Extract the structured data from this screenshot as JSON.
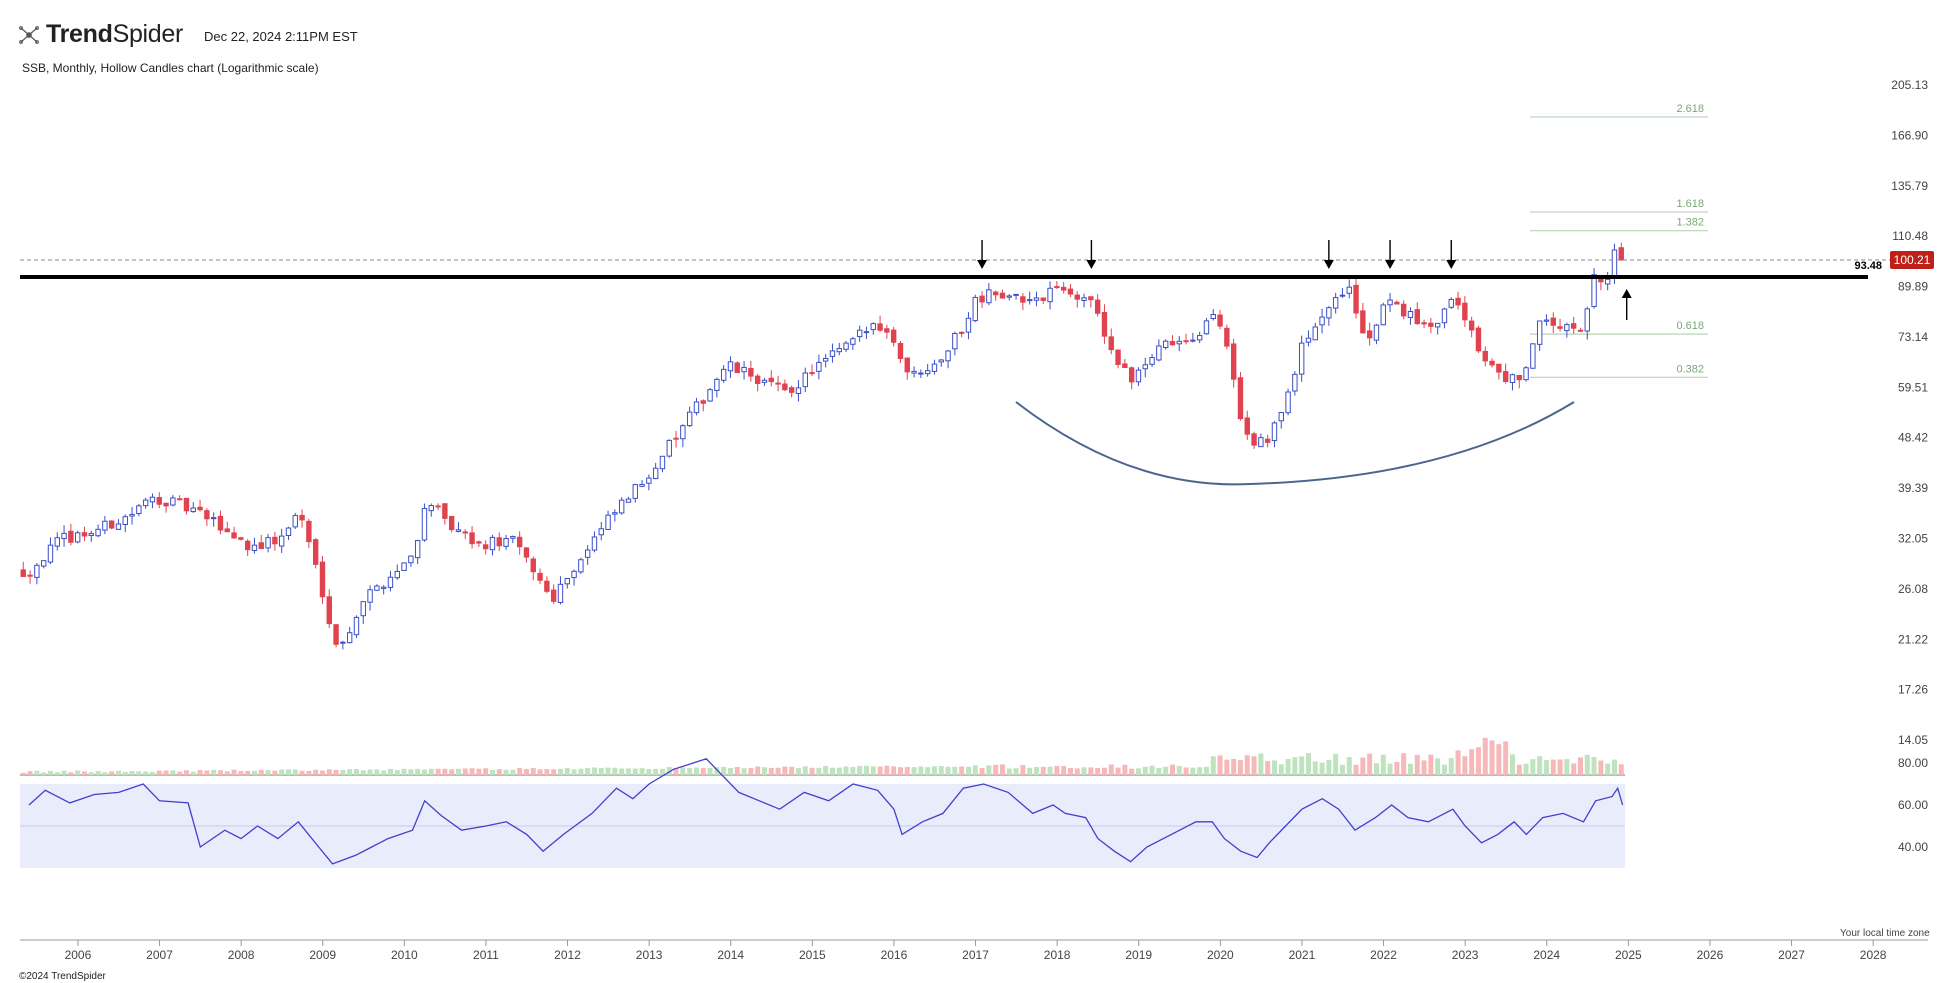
{
  "header": {
    "brand_bold": "Trend",
    "brand_light": "Spider",
    "timestamp": "Dec 22, 2024 2:11PM EST",
    "subtitle": "SSB, Monthly, Hollow Candles chart (Logarithmic scale)"
  },
  "footer": {
    "copyright": "©2024 TrendSpider",
    "timezone_note": "Your local time zone"
  },
  "colors": {
    "up": "#3a4fc9",
    "down": "#e0434f",
    "vol_up": "#bfe2bf",
    "vol_down": "#f6b8b8",
    "fib": "#7aa876",
    "cup": "#4a6690",
    "rsi": "#4040cc",
    "rsi_band": "#e8ecfb",
    "last_price_bg": "#c0201a"
  },
  "chart_data": {
    "type": "candlestick",
    "ticker": "SSB",
    "interval": "Monthly",
    "scale": "log",
    "price_axis_ticks": [
      "205.13",
      "166.90",
      "135.79",
      "110.48",
      "89.89",
      "73.14",
      "59.51",
      "48.42",
      "39.39",
      "32.05",
      "26.08",
      "21.22",
      "17.26",
      "14.05"
    ],
    "x_axis_ticks": [
      "2006",
      "2007",
      "2008",
      "2009",
      "2010",
      "2011",
      "2012",
      "2013",
      "2014",
      "2015",
      "2016",
      "2017",
      "2018",
      "2019",
      "2020",
      "2021",
      "2022",
      "2023",
      "2024",
      "2025",
      "2026",
      "2027",
      "2028"
    ],
    "last_price": "100.21",
    "resistance_level": "93.48",
    "fib_levels": [
      "2.618",
      "1.618",
      "1.382",
      "0.618",
      "0.382"
    ],
    "rsi_axis_ticks": [
      "80.00",
      "60.00",
      "40.00"
    ],
    "rsi_band": [
      30,
      70
    ],
    "close_path": [
      [
        "2005.4",
        28
      ],
      [
        "2005.8",
        32
      ],
      [
        "2006.2",
        33
      ],
      [
        "2006.6",
        35
      ],
      [
        "2006.95",
        38
      ],
      [
        "2007.4",
        36
      ],
      [
        "2007.7",
        34
      ],
      [
        "2008.1",
        31
      ],
      [
        "2008.5",
        32
      ],
      [
        "2008.7",
        36
      ],
      [
        "2009.05",
        24
      ],
      [
        "2009.2",
        20
      ],
      [
        "2009.5",
        25
      ],
      [
        "2009.9",
        28
      ],
      [
        "2010.1",
        30
      ],
      [
        "2010.3",
        38
      ],
      [
        "2010.5",
        34
      ],
      [
        "2010.9",
        31
      ],
      [
        "2011.3",
        32
      ],
      [
        "2011.6",
        28
      ],
      [
        "2011.8",
        25
      ],
      [
        "2012.2",
        30
      ],
      [
        "2012.6",
        36
      ],
      [
        "2012.9",
        40
      ],
      [
        "2013.1",
        44
      ],
      [
        "2013.4",
        50
      ],
      [
        "2013.7",
        58
      ],
      [
        "2013.95",
        65
      ],
      [
        "2014.3",
        62
      ],
      [
        "2014.7",
        58
      ],
      [
        "2015.0",
        64
      ],
      [
        "2015.4",
        70
      ],
      [
        "2015.8",
        78
      ],
      [
        "2016.0",
        72
      ],
      [
        "2016.2",
        62
      ],
      [
        "2016.6",
        68
      ],
      [
        "2016.9",
        78
      ],
      [
        "2017.0",
        86
      ],
      [
        "2017.3",
        88
      ],
      [
        "2017.6",
        84
      ],
      [
        "2017.9",
        88
      ],
      [
        "2018.2",
        87
      ],
      [
        "2018.4",
        85
      ],
      [
        "2018.7",
        67
      ],
      [
        "2018.9",
        62
      ],
      [
        "2019.3",
        70
      ],
      [
        "2019.7",
        74
      ],
      [
        "2019.95",
        80
      ],
      [
        "2020.1",
        70
      ],
      [
        "2020.25",
        53
      ],
      [
        "2020.4",
        47
      ],
      [
        "2020.6",
        48
      ],
      [
        "2020.8",
        57
      ],
      [
        "2021.0",
        70
      ],
      [
        "2021.3",
        82
      ],
      [
        "2021.6",
        88
      ],
      [
        "2021.8",
        70
      ],
      [
        "2022.05",
        85
      ],
      [
        "2022.4",
        78
      ],
      [
        "2022.7",
        78
      ],
      [
        "2022.85",
        86
      ],
      [
        "2023.1",
        73
      ],
      [
        "2023.25",
        66
      ],
      [
        "2023.5",
        60
      ],
      [
        "2023.75",
        64
      ],
      [
        "2023.95",
        80
      ],
      [
        "2024.2",
        76
      ],
      [
        "2024.45",
        74
      ],
      [
        "2024.55",
        92
      ],
      [
        "2024.75",
        95
      ],
      [
        "2024.83",
        104
      ],
      [
        "2024.92",
        100.21
      ]
    ],
    "rsi_path": [
      [
        "2005.4",
        60
      ],
      [
        "2005.6",
        67
      ],
      [
        "2005.9",
        61
      ],
      [
        "2006.2",
        65
      ],
      [
        "2006.5",
        66
      ],
      [
        "2006.8",
        70
      ],
      [
        "2007.0",
        62
      ],
      [
        "2007.35",
        61
      ],
      [
        "2007.5",
        40
      ],
      [
        "2007.8",
        48
      ],
      [
        "2008.0",
        44
      ],
      [
        "2008.2",
        50
      ],
      [
        "2008.45",
        44
      ],
      [
        "2008.7",
        52
      ],
      [
        "2008.95",
        40
      ],
      [
        "2009.12",
        32
      ],
      [
        "2009.4",
        36
      ],
      [
        "2009.6",
        40
      ],
      [
        "2009.8",
        44
      ],
      [
        "2010.1",
        48
      ],
      [
        "2010.25",
        62
      ],
      [
        "2010.45",
        55
      ],
      [
        "2010.7",
        48
      ],
      [
        "2011.0",
        50
      ],
      [
        "2011.25",
        52
      ],
      [
        "2011.5",
        46
      ],
      [
        "2011.7",
        38
      ],
      [
        "2011.95",
        46
      ],
      [
        "2012.3",
        56
      ],
      [
        "2012.6",
        68
      ],
      [
        "2012.8",
        63
      ],
      [
        "2013.0",
        70
      ],
      [
        "2013.3",
        77
      ],
      [
        "2013.7",
        82
      ],
      [
        "2013.85",
        76
      ],
      [
        "2014.1",
        66
      ],
      [
        "2014.35",
        62
      ],
      [
        "2014.6",
        58
      ],
      [
        "2014.9",
        66
      ],
      [
        "2015.2",
        62
      ],
      [
        "2015.5",
        70
      ],
      [
        "2015.8",
        67
      ],
      [
        "2016.0",
        58
      ],
      [
        "2016.1",
        46
      ],
      [
        "2016.35",
        52
      ],
      [
        "2016.6",
        56
      ],
      [
        "2016.85",
        68
      ],
      [
        "2017.1",
        70
      ],
      [
        "2017.4",
        66
      ],
      [
        "2017.7",
        56
      ],
      [
        "2017.95",
        60
      ],
      [
        "2018.1",
        56
      ],
      [
        "2018.35",
        54
      ],
      [
        "2018.5",
        44
      ],
      [
        "2018.7",
        38
      ],
      [
        "2018.9",
        33
      ],
      [
        "2019.1",
        40
      ],
      [
        "2019.4",
        46
      ],
      [
        "2019.7",
        52
      ],
      [
        "2019.9",
        52
      ],
      [
        "2020.05",
        44
      ],
      [
        "2020.25",
        38
      ],
      [
        "2020.45",
        35
      ],
      [
        "2020.6",
        42
      ],
      [
        "2020.8",
        50
      ],
      [
        "2021.0",
        58
      ],
      [
        "2021.25",
        63
      ],
      [
        "2021.45",
        58
      ],
      [
        "2021.65",
        48
      ],
      [
        "2021.9",
        54
      ],
      [
        "2022.1",
        60
      ],
      [
        "2022.3",
        54
      ],
      [
        "2022.55",
        52
      ],
      [
        "2022.85",
        58
      ],
      [
        "2023.0",
        50
      ],
      [
        "2023.2",
        42
      ],
      [
        "2023.4",
        46
      ],
      [
        "2023.6",
        52
      ],
      [
        "2023.75",
        46
      ],
      [
        "2023.95",
        54
      ],
      [
        "2024.2",
        56
      ],
      [
        "2024.45",
        52
      ],
      [
        "2024.6",
        62
      ],
      [
        "2024.8",
        64
      ],
      [
        "2024.87",
        68
      ],
      [
        "2024.93",
        60
      ]
    ]
  }
}
